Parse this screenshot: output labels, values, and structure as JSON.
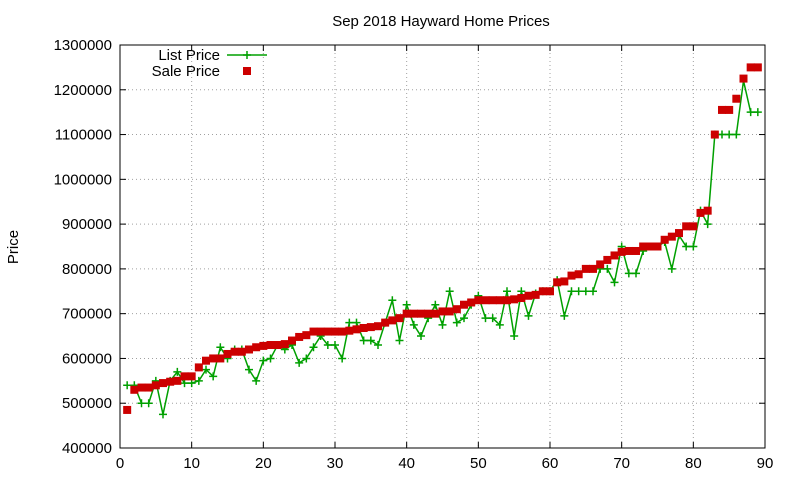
{
  "chart_data": {
    "type": "line",
    "title": "Sep 2018 Hayward Home Prices",
    "xlabel": "",
    "ylabel": "Price",
    "xlim": [
      0,
      90
    ],
    "ylim": [
      400000,
      1300000
    ],
    "x_ticks": [
      0,
      10,
      20,
      30,
      40,
      50,
      60,
      70,
      80,
      90
    ],
    "y_ticks": [
      400000,
      500000,
      600000,
      700000,
      800000,
      900000,
      1000000,
      1100000,
      1200000,
      1300000
    ],
    "grid": true,
    "legend_position": "top-left",
    "x": [
      1,
      2,
      3,
      4,
      5,
      6,
      7,
      8,
      9,
      10,
      11,
      12,
      13,
      14,
      15,
      16,
      17,
      18,
      19,
      20,
      21,
      22,
      23,
      24,
      25,
      26,
      27,
      28,
      29,
      30,
      31,
      32,
      33,
      34,
      35,
      36,
      37,
      38,
      39,
      40,
      41,
      42,
      43,
      44,
      45,
      46,
      47,
      48,
      49,
      50,
      51,
      52,
      53,
      54,
      55,
      56,
      57,
      58,
      59,
      60,
      61,
      62,
      63,
      64,
      65,
      66,
      67,
      68,
      69,
      70,
      71,
      72,
      73,
      74,
      75,
      76,
      77,
      78,
      79,
      80,
      81,
      82,
      83,
      84,
      85,
      86,
      87,
      88,
      89
    ],
    "series": [
      {
        "name": "List Price",
        "style": "linespoints",
        "color": "#00a000",
        "values": [
          540000,
          540000,
          500000,
          500000,
          550000,
          475000,
          550000,
          570000,
          545000,
          545000,
          550000,
          575000,
          560000,
          625000,
          600000,
          620000,
          620000,
          575000,
          550000,
          595000,
          600000,
          630000,
          620000,
          630000,
          590000,
          600000,
          625000,
          650000,
          630000,
          630000,
          600000,
          680000,
          680000,
          640000,
          640000,
          630000,
          680000,
          730000,
          640000,
          720000,
          675000,
          650000,
          690000,
          720000,
          675000,
          750000,
          680000,
          690000,
          720000,
          740000,
          690000,
          690000,
          675000,
          750000,
          650000,
          750000,
          695000,
          745000,
          750000,
          750000,
          775000,
          695000,
          750000,
          750000,
          750000,
          750000,
          800000,
          800000,
          770000,
          850000,
          790000,
          790000,
          840000,
          850000,
          850000,
          860000,
          800000,
          875000,
          850000,
          850000,
          930000,
          900000,
          1100000,
          1100000,
          1100000,
          1100000,
          1220000,
          1150000,
          1150000
        ]
      },
      {
        "name": "Sale Price",
        "style": "points",
        "color": "#cc0000",
        "values": [
          485000,
          530000,
          535000,
          535000,
          540000,
          545000,
          548000,
          550000,
          560000,
          560000,
          580000,
          595000,
          600000,
          600000,
          610000,
          615000,
          615000,
          620000,
          625000,
          628000,
          630000,
          630000,
          632000,
          640000,
          648000,
          652000,
          660000,
          660000,
          660000,
          660000,
          660000,
          662000,
          665000,
          668000,
          670000,
          672000,
          680000,
          685000,
          690000,
          700000,
          700000,
          700000,
          700000,
          700000,
          705000,
          705000,
          710000,
          720000,
          725000,
          730000,
          730000,
          730000,
          730000,
          730000,
          732000,
          735000,
          740000,
          742000,
          750000,
          750000,
          770000,
          772000,
          785000,
          788000,
          800000,
          800000,
          810000,
          820000,
          830000,
          838000,
          840000,
          840000,
          850000,
          850000,
          850000,
          865000,
          872000,
          880000,
          895000,
          895000,
          925000,
          930000,
          1100000,
          1155000,
          1155000,
          1180000,
          1225000,
          1250000,
          1250000
        ]
      }
    ]
  }
}
